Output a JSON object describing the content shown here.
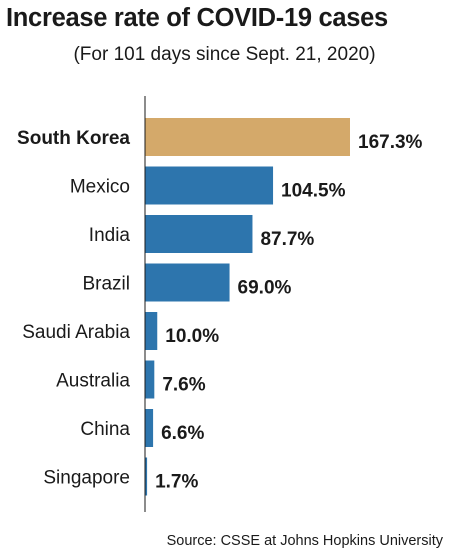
{
  "chart_data": {
    "type": "bar",
    "orientation": "horizontal",
    "title": "Increase rate of COVID-19 cases",
    "subtitle": "(For 101 days since Sept. 21, 2020)",
    "source": "Source: CSSE at Johns Hopkins University",
    "categories": [
      "South Korea",
      "Mexico",
      "India",
      "Brazil",
      "Saudi Arabia",
      "Australia",
      "China",
      "Singapore"
    ],
    "values": [
      167.3,
      104.5,
      87.7,
      69.0,
      10.0,
      7.6,
      6.6,
      1.7
    ],
    "value_labels": [
      "167.3%",
      "104.5%",
      "87.7%",
      "69.0%",
      "10.0%",
      "7.6%",
      "6.6%",
      "1.7%"
    ],
    "highlight_category": "South Korea",
    "colors": {
      "highlight": "#d4a96a",
      "bar": "#2d75ad",
      "axis": "#1a1a1a"
    },
    "xlim": [
      0,
      167.3
    ],
    "grid": false
  }
}
